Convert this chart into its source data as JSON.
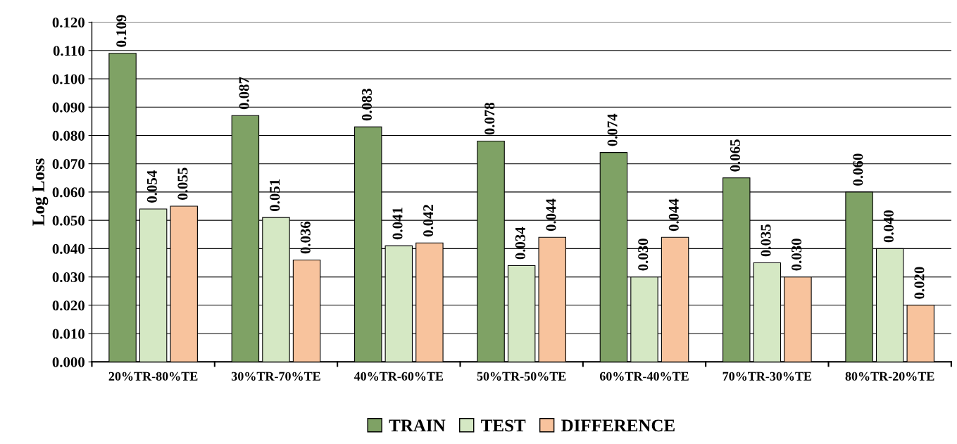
{
  "chart_data": {
    "type": "bar",
    "ylabel": "Log Loss",
    "categories": [
      "20%TR-80%TE",
      "30%TR-70%TE",
      "40%TR-60%TE",
      "50%TR-50%TE",
      "60%TR-40%TE",
      "70%TR-30%TE",
      "80%TR-20%TE"
    ],
    "series": [
      {
        "name": "TRAIN",
        "color": "#7fa265",
        "values": [
          0.109,
          0.087,
          0.083,
          0.078,
          0.074,
          0.065,
          0.06
        ],
        "value_labels": [
          "0.109",
          "0.087",
          "0.083",
          "0.078",
          "0.074",
          "0.065",
          "0.060"
        ]
      },
      {
        "name": "TEST",
        "color": "#d5e8c4",
        "values": [
          0.054,
          0.051,
          0.041,
          0.034,
          0.03,
          0.035,
          0.04
        ],
        "value_labels": [
          "0.054",
          "0.051",
          "0.041",
          "0.034",
          "0.030",
          "0.035",
          "0.040"
        ]
      },
      {
        "name": "DIFFERENCE",
        "color": "#f8c39d",
        "values": [
          0.055,
          0.036,
          0.042,
          0.044,
          0.044,
          0.03,
          0.02
        ],
        "value_labels": [
          "0.055",
          "0.036",
          "0.042",
          "0.044",
          "0.044",
          "0.030",
          "0.020"
        ]
      }
    ],
    "ylim": [
      0,
      0.12
    ],
    "yticks": [
      {
        "value": 0,
        "label": "0.000"
      },
      {
        "value": 0.01,
        "label": "0.010"
      },
      {
        "value": 0.02,
        "label": "0.020"
      },
      {
        "value": 0.03,
        "label": "0.030"
      },
      {
        "value": 0.04,
        "label": "0.040"
      },
      {
        "value": 0.05,
        "label": "0.050"
      },
      {
        "value": 0.06,
        "label": "0.060"
      },
      {
        "value": 0.07,
        "label": "0.070"
      },
      {
        "value": 0.08,
        "label": "0.080"
      },
      {
        "value": 0.09,
        "label": "0.090"
      },
      {
        "value": 0.1,
        "label": "0.100"
      },
      {
        "value": 0.11,
        "label": "0.110"
      },
      {
        "value": 0.12,
        "label": "0.120"
      }
    ],
    "grid": "y",
    "legend": "bottom"
  }
}
